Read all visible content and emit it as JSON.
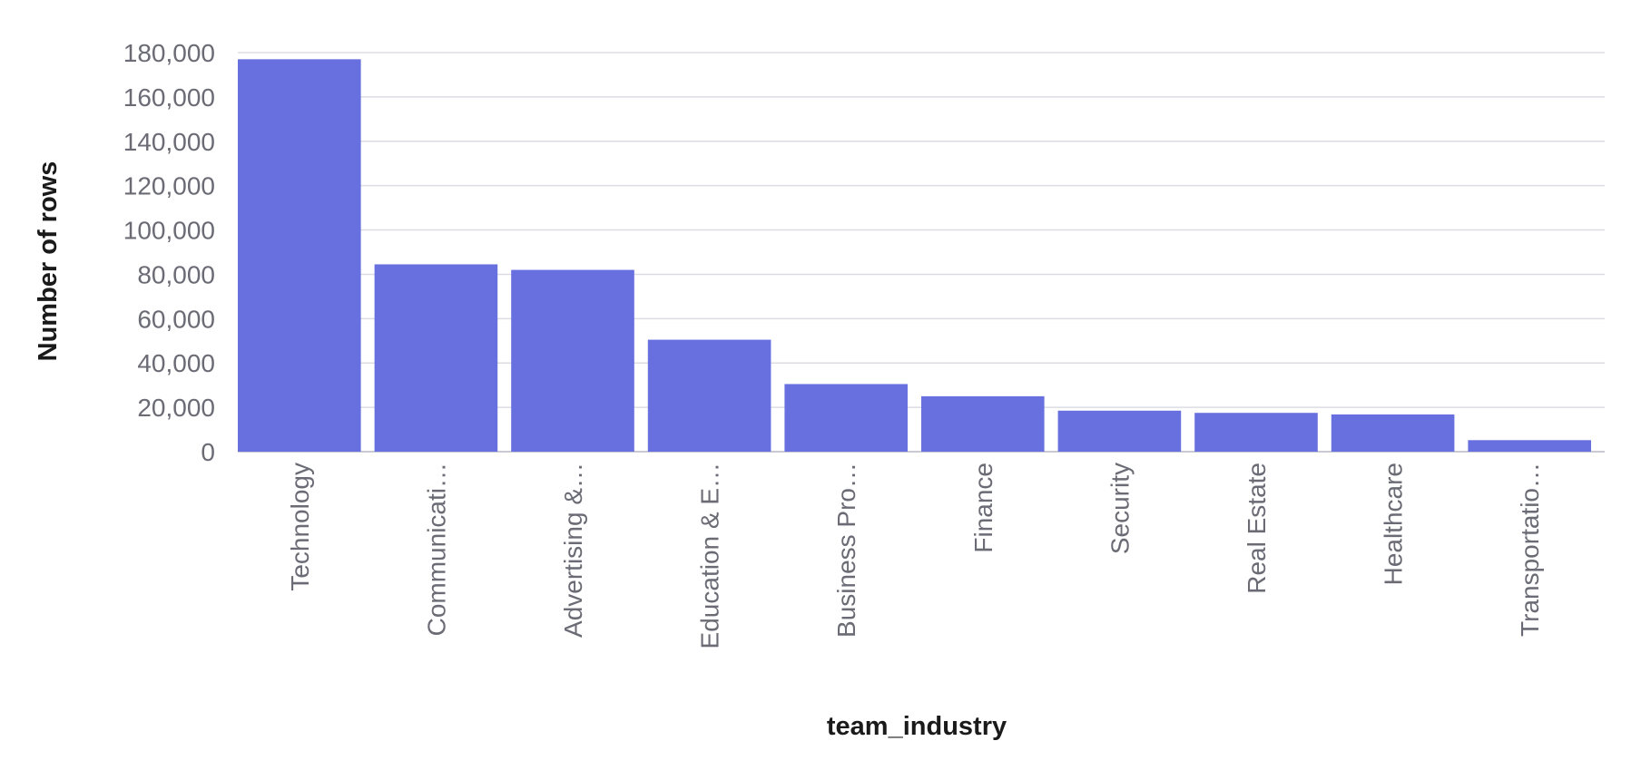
{
  "colors": {
    "bar": "#6870e0",
    "grid": "#dcdde4",
    "tick_text": "#6b6b75",
    "title_text": "#1a1a1a"
  },
  "chart_data": {
    "type": "bar",
    "xlabel": "team_industry",
    "ylabel": "Number of rows",
    "ylim": [
      0,
      180000
    ],
    "yticks": [
      0,
      20000,
      40000,
      60000,
      80000,
      100000,
      120000,
      140000,
      160000,
      180000
    ],
    "ytick_labels": [
      "0",
      "20,000",
      "40,000",
      "60,000",
      "80,000",
      "100,000",
      "120,000",
      "140,000",
      "160,000",
      "180,000"
    ],
    "grid": true,
    "categories": [
      "Technology",
      "Communicati…",
      "Advertising &…",
      "Education & E…",
      "Business Pro…",
      "Finance",
      "Security",
      "Real Estate",
      "Healthcare",
      "Transportatio…"
    ],
    "values": [
      177000,
      84500,
      82000,
      50500,
      30500,
      25000,
      18500,
      17500,
      16800,
      5200
    ]
  }
}
